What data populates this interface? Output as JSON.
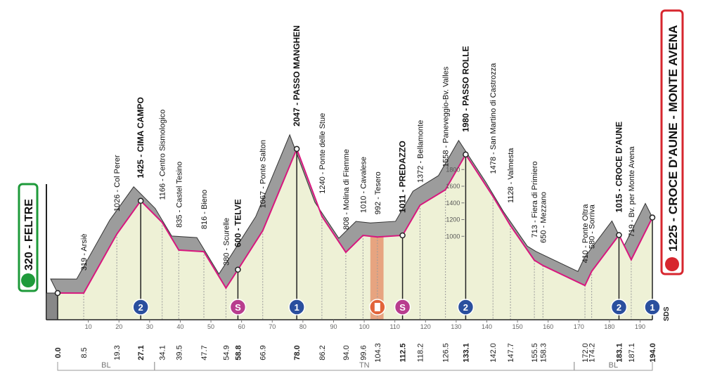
{
  "chart_data": {
    "type": "profile",
    "xlim": [
      0,
      194
    ],
    "ylim": [
      0,
      3200
    ],
    "xticks": [
      10,
      20,
      30,
      40,
      50,
      60,
      70,
      80,
      90,
      100,
      110,
      120,
      130,
      140,
      150,
      160,
      170,
      180,
      190
    ],
    "yticks": [
      1000,
      1200,
      1400,
      1600,
      1800
    ],
    "line_color": "#d8177e",
    "fill_color": "#eef1d6",
    "relief_color": "#9c9c9c",
    "badge_colors": {
      "gpm": "#2a4f9e",
      "sprint": "#b83d8e",
      "feed": "#e2643a"
    },
    "feed_zone": [
      102,
      106.3
    ],
    "finish_note": "SDS",
    "waypoints": [
      {
        "km": {
          "value": 0,
          "label": "0.0"
        },
        "altitude": 320,
        "label": "320 - FELTRE",
        "major": true
      },
      {
        "km": 8.5,
        "altitude": 319,
        "label": "319 - Arsiè"
      },
      {
        "km": 19.3,
        "altitude": 1026,
        "label": "1026 - Col Perer"
      },
      {
        "km": 27.1,
        "altitude": 1425,
        "label": "1425 - CIMA CAMPO",
        "major": true,
        "badge": {
          "kind": "gpm",
          "text": "2"
        }
      },
      {
        "km": 34.1,
        "altitude": 1166,
        "label": "1166 - Centro Sismologico"
      },
      {
        "km": 39.5,
        "altitude": 835,
        "label": "835 - Castel Tesino"
      },
      {
        "km": 47.7,
        "altitude": 816,
        "label": "816 - Bieno"
      },
      {
        "km": 54.9,
        "altitude": 380,
        "label": "380 - Scurelle"
      },
      {
        "km": 58.8,
        "altitude": 600,
        "label": "600 - TELVE",
        "major": true,
        "badge": {
          "kind": "sprint",
          "text": "S"
        }
      },
      {
        "km": 66.9,
        "altitude": 1067,
        "label": "1067 - Ponte Salton"
      },
      {
        "km": {
          "value": 78,
          "label": "78.0"
        },
        "altitude": 2047,
        "label": "2047 - PASSO MANGHEN",
        "major": true,
        "badge": {
          "kind": "gpm",
          "text": "1"
        }
      },
      {
        "km": 86.2,
        "altitude": 1240,
        "label": "1240 - Ponte delle Stue"
      },
      {
        "km": {
          "value": 94,
          "label": "94.0"
        },
        "altitude": 808,
        "label": "808 - Molina di Fiemme"
      },
      {
        "km": 99.6,
        "altitude": 1010,
        "label": "1010 - Cavalese"
      },
      {
        "km": 104.3,
        "altitude": 992,
        "label": "992 - Tesero",
        "badge": {
          "kind": "feed"
        }
      },
      {
        "km": 112.5,
        "altitude": 1011,
        "label": "1011 - PREDAZZO",
        "major": true,
        "badge": {
          "kind": "sprint",
          "text": "S"
        }
      },
      {
        "km": 118.2,
        "altitude": 1372,
        "label": "1372 - Bellamonte"
      },
      {
        "km": 126.5,
        "altitude": 1558,
        "label": "1558 - Paneveggio-Bv. Valles"
      },
      {
        "km": 133.1,
        "altitude": 1980,
        "label": "1980 - PASSO ROLLE",
        "major": true,
        "badge": {
          "kind": "gpm",
          "text": "2"
        }
      },
      {
        "km": {
          "value": 142,
          "label": "142.0"
        },
        "altitude": 1478,
        "label": "1478 - San Martino di Castrozza"
      },
      {
        "km": 147.7,
        "altitude": 1128,
        "label": "1128 - Valmesta"
      },
      {
        "km": 155.5,
        "altitude": 713,
        "label": "713 - Fiera di Primiero"
      },
      {
        "km": 158.3,
        "altitude": 650,
        "label": "650 - Mezzano"
      },
      {
        "km": {
          "value": 172,
          "label": "172.0"
        },
        "altitude": 410,
        "label": "410 - Ponte Oltra"
      },
      {
        "km": 174.2,
        "altitude": 580,
        "label": "580 - Sorriva"
      },
      {
        "km": 183.1,
        "altitude": 1015,
        "label": "1015 - CROCE D'AUNE",
        "major": true,
        "badge": {
          "kind": "gpm",
          "text": "2"
        }
      },
      {
        "km": 187.1,
        "altitude": 719,
        "label": "719 - Bv. per Monte Avena"
      },
      {
        "km": {
          "value": 194,
          "label": "194.0"
        },
        "altitude": 1225,
        "label": "1225 - CROCE D'AUNE - MONTE AVENA",
        "major": true,
        "badge": {
          "kind": "gpm",
          "text": "1"
        }
      }
    ],
    "regions": [
      {
        "label": "BL",
        "from": 0,
        "to": 31.6
      },
      {
        "label": "TN",
        "from": 31.6,
        "to": 168.5
      },
      {
        "label": "BL",
        "from": 168.5,
        "to": 194
      }
    ]
  }
}
